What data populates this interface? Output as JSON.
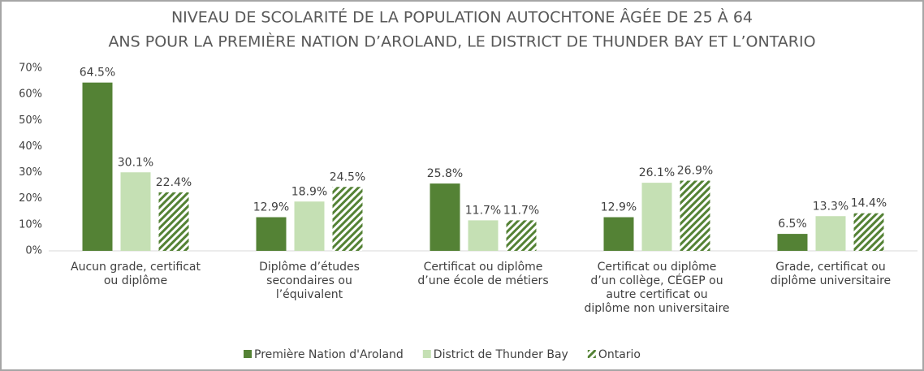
{
  "chart_data": {
    "type": "bar",
    "title": [
      "NIVEAU DE SCOLARITÉ DE LA POPULATION AUTOCHTONE ÂGÉE DE 25 À 64",
      "ANS POUR LA PREMIÈRE NATION D’AROLAND, LE DISTRICT DE THUNDER BAY ET L’ONTARIO"
    ],
    "categories": [
      "Aucun grade, certificat ou diplôme",
      "Diplôme d’études secondaires ou l’équivalent",
      "Certificat ou diplôme d’une école de métiers",
      "Certificat ou diplôme d’un collège, CÉGEP ou autre certificat ou diplôme non universitaire",
      "Grade, certificat ou diplôme universitaire"
    ],
    "series": [
      {
        "name": "Première Nation d'Aroland",
        "color": "#548235",
        "values": [
          64.5,
          12.9,
          25.8,
          12.9,
          6.5
        ],
        "value_labels": [
          "64.5%",
          "12.9%",
          "25.8%",
          "12.9%",
          "6.5%"
        ]
      },
      {
        "name": "District de Thunder Bay",
        "color": "#c5e0b4",
        "values": [
          30.1,
          18.9,
          11.7,
          26.1,
          13.3
        ],
        "value_labels": [
          "30.1%",
          "18.9%",
          "11.7%",
          "26.1%",
          "13.3%"
        ]
      },
      {
        "name": "Ontario",
        "color": "#548235",
        "pattern": "hatch",
        "values": [
          22.4,
          24.5,
          11.7,
          26.9,
          14.4
        ],
        "value_labels": [
          "22.4%",
          "24.5%",
          "11.7%",
          "26.9%",
          "14.4%"
        ]
      }
    ],
    "ylim": [
      0,
      70
    ],
    "yticks": [
      {
        "value": 0,
        "label": "0%"
      },
      {
        "value": 10,
        "label": "10%"
      },
      {
        "value": 20,
        "label": "20%"
      },
      {
        "value": 30,
        "label": "30%"
      },
      {
        "value": 40,
        "label": "40%"
      },
      {
        "value": 50,
        "label": "50%"
      },
      {
        "value": 60,
        "label": "60%"
      },
      {
        "value": 70,
        "label": "70%"
      }
    ],
    "grid": false,
    "legend": "bottom"
  }
}
